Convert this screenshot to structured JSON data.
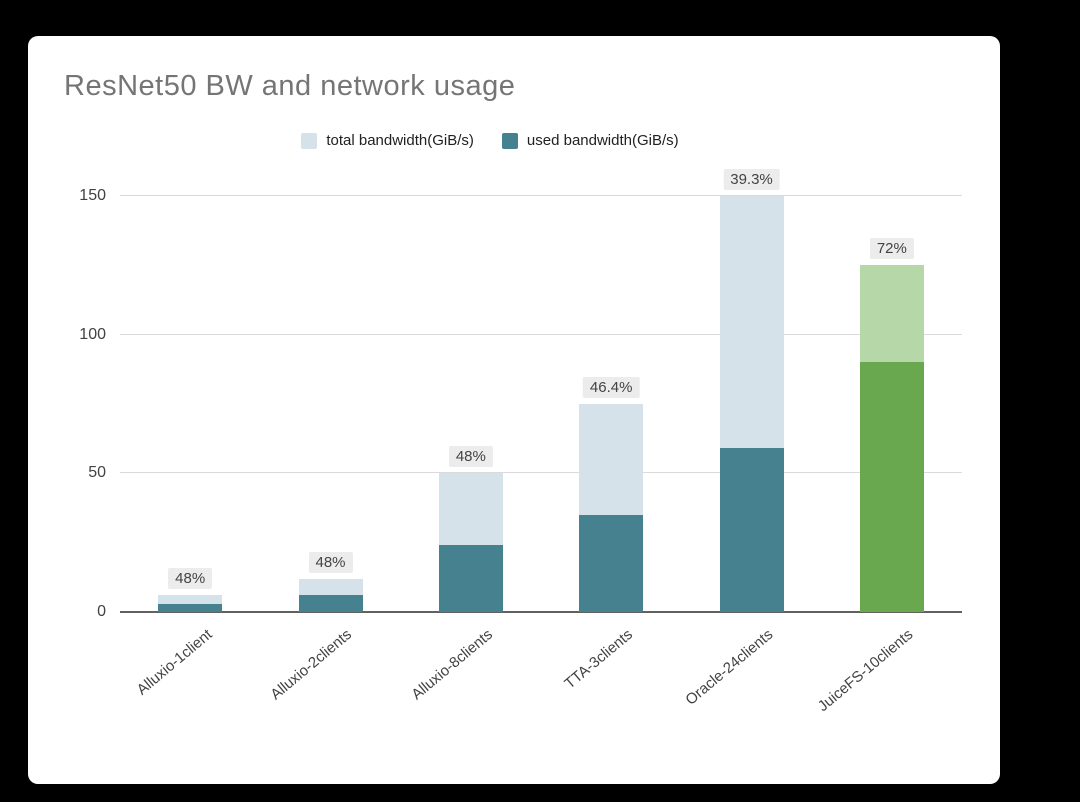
{
  "page": {
    "background": "#000000"
  },
  "card": {
    "background": "#ffffff"
  },
  "chart_data": {
    "type": "bar",
    "variant": "overlay-stacked",
    "title": "ResNet50 BW and network usage",
    "categories": [
      "Alluxio-1client",
      "Alluxio-2clients",
      "Alluxio-8clients",
      "TTA-3clients",
      "Oracle-24clients",
      "JuiceFS-10clients"
    ],
    "series": [
      {
        "name": "total bandwidth(GiB/s)",
        "values": [
          6,
          12,
          50,
          75,
          150,
          125
        ]
      },
      {
        "name": "used bandwidth(GiB/s)",
        "values": [
          3,
          6,
          24,
          35,
          59,
          90
        ]
      }
    ],
    "bar_labels": [
      "48%",
      "48%",
      "48%",
      "46.4%",
      "39.3%",
      "72%"
    ],
    "highlight_category_index": 5,
    "yticks": [
      0,
      50,
      100,
      150
    ],
    "ylim": [
      0,
      150
    ],
    "xlabel": "",
    "ylabel": "",
    "grid": true,
    "legend_position": "top",
    "legend": [
      {
        "label": "total bandwidth(GiB/s)",
        "swatch_color": "#d5e2ea"
      },
      {
        "label": "used bandwidth(GiB/s)",
        "swatch_color": "#45818e"
      }
    ],
    "colors": {
      "total_default": "#d5e2ea",
      "used_default": "#45818e",
      "total_highlight": "#b6d7a8",
      "used_highlight": "#6aa84f",
      "bar_label_bg": "#ececec",
      "bar_label_text": "#434343",
      "axis_text": "#424242",
      "gridline": "#dadada",
      "axis_line": "#616161",
      "title_color": "#757575"
    }
  }
}
